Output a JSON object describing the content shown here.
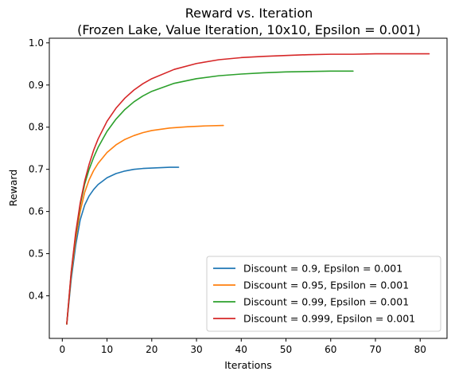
{
  "chart_data": {
    "type": "line",
    "title": "Reward vs. Iteration",
    "subtitle": "(Frozen Lake, Value Iteration, 10x10, Epsilon = 0.001)",
    "xlabel": "Iterations",
    "ylabel": "Reward",
    "xlim": [
      -2.9,
      86
    ],
    "ylim": [
      0.299,
      1.011
    ],
    "xticks": [
      0,
      10,
      20,
      30,
      40,
      50,
      60,
      70,
      80
    ],
    "yticks": [
      0.4,
      0.5,
      0.6,
      0.7,
      0.8,
      0.9,
      1.0
    ],
    "grid": false,
    "legend_position": "lower-right",
    "series": [
      {
        "name": "Discount = 0.9, Epsilon = 0.001",
        "color": "#1f77b4",
        "x": [
          1,
          2,
          3,
          4,
          5,
          6,
          7,
          8,
          10,
          12,
          14,
          16,
          18,
          20,
          22,
          24,
          26
        ],
        "y": [
          0.333,
          0.44,
          0.52,
          0.58,
          0.615,
          0.637,
          0.652,
          0.664,
          0.68,
          0.69,
          0.696,
          0.7,
          0.702,
          0.703,
          0.704,
          0.705,
          0.705
        ]
      },
      {
        "name": "Discount = 0.95, Epsilon = 0.001",
        "color": "#ff7f0e",
        "x": [
          1,
          2,
          3,
          4,
          5,
          6,
          7,
          8,
          10,
          12,
          14,
          16,
          18,
          20,
          24,
          28,
          32,
          36
        ],
        "y": [
          0.333,
          0.45,
          0.535,
          0.6,
          0.645,
          0.675,
          0.697,
          0.714,
          0.74,
          0.758,
          0.771,
          0.78,
          0.787,
          0.792,
          0.798,
          0.801,
          0.803,
          0.804
        ]
      },
      {
        "name": "Discount = 0.99, Epsilon = 0.001",
        "color": "#2ca02c",
        "x": [
          1,
          2,
          3,
          4,
          5,
          6,
          7,
          8,
          10,
          12,
          14,
          16,
          18,
          20,
          25,
          30,
          35,
          40,
          45,
          50,
          55,
          60,
          65
        ],
        "y": [
          0.333,
          0.455,
          0.545,
          0.615,
          0.665,
          0.7,
          0.728,
          0.752,
          0.79,
          0.819,
          0.842,
          0.86,
          0.874,
          0.885,
          0.904,
          0.915,
          0.922,
          0.926,
          0.929,
          0.931,
          0.932,
          0.933,
          0.933
        ]
      },
      {
        "name": "Discount = 0.999, Epsilon = 0.001",
        "color": "#d62728",
        "x": [
          1,
          2,
          3,
          4,
          5,
          6,
          7,
          8,
          10,
          12,
          14,
          16,
          18,
          20,
          25,
          30,
          35,
          40,
          45,
          50,
          55,
          60,
          65,
          70,
          75,
          82
        ],
        "y": [
          0.333,
          0.458,
          0.55,
          0.62,
          0.672,
          0.712,
          0.745,
          0.772,
          0.814,
          0.845,
          0.869,
          0.888,
          0.903,
          0.915,
          0.937,
          0.951,
          0.96,
          0.965,
          0.968,
          0.97,
          0.972,
          0.973,
          0.973,
          0.974,
          0.974,
          0.974
        ]
      }
    ]
  }
}
